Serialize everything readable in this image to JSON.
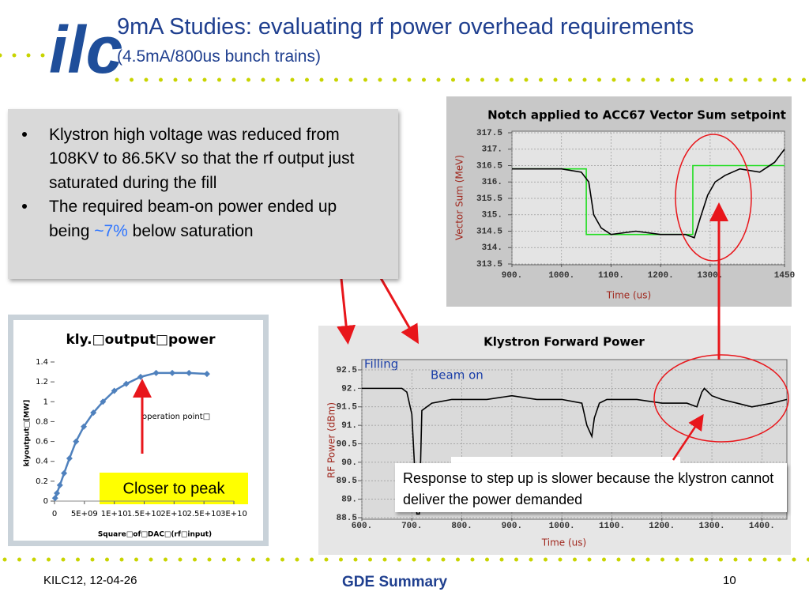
{
  "logo": "ilc",
  "header": {
    "title": "9mA Studies: evaluating rf power overhead requirements",
    "subtitle": "(4.5mA/800us bunch trains)"
  },
  "bullets": [
    {
      "parts": [
        "Klystron high voltage was reduced from 108KV to 86.5KV so that the rf output just saturated during the fill"
      ]
    },
    {
      "parts": [
        "The required beam-on power ended up being ",
        "~7%",
        " below saturation"
      ]
    }
  ],
  "footer": {
    "left": "KILC12, 12-04-26",
    "center": "GDE Summary",
    "right": "10"
  },
  "chart_data": [
    {
      "type": "line",
      "title": "kly.□output□power",
      "x_label": "Square□of□DAC□(rf□input)",
      "y_label": "klyoutput□[MW]",
      "annotations": [
        "operation point□",
        "Closer to peak"
      ],
      "xlim": [
        0,
        30000000000
      ],
      "ylim": [
        0,
        1.4
      ],
      "grid": false,
      "markers": true,
      "xticks": [
        0,
        {
          "value": 5000000000,
          "label": "5E+09"
        },
        {
          "value": 10000000000,
          "label": "1E+10"
        },
        {
          "value": 15000000000,
          "label": "1.5E+10"
        },
        {
          "value": 20000000000,
          "label": "2E+10"
        },
        {
          "value": 25000000000,
          "label": "2.5E+10"
        },
        {
          "value": 30000000000,
          "label": "3E+10"
        }
      ],
      "yticks": [
        0,
        0.2,
        0.4,
        0.6,
        0.8,
        1,
        1.2,
        1.4
      ],
      "series": [
        {
          "color": "#4f81bd",
          "x": [
            100000000,
            400000000,
            900000000,
            1600000000,
            2500000000,
            3600000000,
            4900000000,
            6500000000,
            8100000000,
            10000000000,
            12000000000,
            14400000000,
            17000000000,
            19700000000,
            22500000000,
            25500000000
          ],
          "values": [
            0.03,
            0.08,
            0.16,
            0.28,
            0.43,
            0.6,
            0.75,
            0.89,
            1.0,
            1.11,
            1.18,
            1.25,
            1.29,
            1.29,
            1.29,
            1.28
          ]
        }
      ]
    },
    {
      "type": "line",
      "title": "Notch applied to ACC67 Vector Sum setpoint",
      "x_label": "Time (us)",
      "y_label": "Vector Sum (MeV)",
      "xlim": [
        900,
        1450
      ],
      "ylim": [
        313.5,
        317.5
      ],
      "grid": true,
      "xticks": [
        {
          "value": 900,
          "label": "900."
        },
        {
          "value": 1000,
          "label": "1000."
        },
        {
          "value": 1100,
          "label": "1100."
        },
        {
          "value": 1200,
          "label": "1200."
        },
        {
          "value": 1300,
          "label": "1300."
        },
        {
          "value": 1450,
          "label": "1450"
        }
      ],
      "yticks": [
        313.5,
        {
          "value": 314,
          "label": "314."
        },
        314.5,
        {
          "value": 315,
          "label": "315."
        },
        315.5,
        {
          "value": 316,
          "label": "316."
        },
        316.5,
        {
          "value": 317,
          "label": "317."
        },
        317.5
      ],
      "series": [
        {
          "color": "#22dd22",
          "x": [
            900,
            1050,
            1050,
            1265,
            1265,
            1450
          ],
          "values": [
            316.4,
            316.4,
            314.4,
            314.4,
            316.5,
            316.5
          ]
        },
        {
          "color": "#000000",
          "x": [
            900,
            950,
            1000,
            1040,
            1055,
            1065,
            1080,
            1100,
            1150,
            1200,
            1250,
            1268,
            1280,
            1295,
            1310,
            1330,
            1360,
            1400,
            1430,
            1450
          ],
          "values": [
            316.4,
            316.4,
            316.4,
            316.3,
            316.0,
            315.0,
            314.6,
            314.4,
            314.5,
            314.4,
            314.4,
            314.3,
            314.9,
            315.6,
            316.0,
            316.2,
            316.4,
            316.3,
            316.6,
            317.0
          ]
        }
      ]
    },
    {
      "type": "line",
      "title": "Klystron Forward Power",
      "x_label": "Time (us)",
      "y_label": "RF Power (dBm)",
      "annotations": [
        "Filling",
        "Beam on",
        "Response to step up is slower because the klystron cannot deliver the power demanded"
      ],
      "xlim": [
        600,
        1450
      ],
      "ylim": [
        88.5,
        92.5
      ],
      "grid": true,
      "xticks": [
        {
          "value": 600,
          "label": "600."
        },
        {
          "value": 700,
          "label": "700."
        },
        {
          "value": 800,
          "label": "800."
        },
        {
          "value": 900,
          "label": "900."
        },
        {
          "value": 1000,
          "label": "1000."
        },
        {
          "value": 1100,
          "label": "1100."
        },
        {
          "value": 1200,
          "label": "1200."
        },
        {
          "value": 1300,
          "label": "1300."
        },
        {
          "value": 1400,
          "label": "1400."
        }
      ],
      "yticks": [
        88.5,
        {
          "value": 89,
          "label": "89."
        },
        89.5,
        {
          "value": 90,
          "label": "90."
        },
        90.5,
        {
          "value": 91,
          "label": "91."
        },
        91.5,
        {
          "value": 92,
          "label": "92."
        },
        92.5
      ],
      "series": [
        {
          "color": "#000000",
          "x": [
            600,
            640,
            680,
            690,
            700,
            705,
            710,
            715,
            720,
            740,
            780,
            850,
            900,
            950,
            1000,
            1040,
            1050,
            1060,
            1065,
            1075,
            1090,
            1150,
            1200,
            1250,
            1270,
            1280,
            1285,
            1300,
            1320,
            1350,
            1380,
            1420,
            1450
          ],
          "values": [
            92.0,
            92.0,
            92.0,
            91.9,
            91.3,
            90.0,
            88.6,
            88.6,
            91.4,
            91.6,
            91.7,
            91.7,
            91.8,
            91.7,
            91.7,
            91.6,
            91.0,
            90.7,
            91.2,
            91.6,
            91.7,
            91.7,
            91.6,
            91.6,
            91.5,
            91.9,
            92.0,
            91.8,
            91.7,
            91.6,
            91.5,
            91.6,
            91.7
          ]
        }
      ]
    }
  ]
}
